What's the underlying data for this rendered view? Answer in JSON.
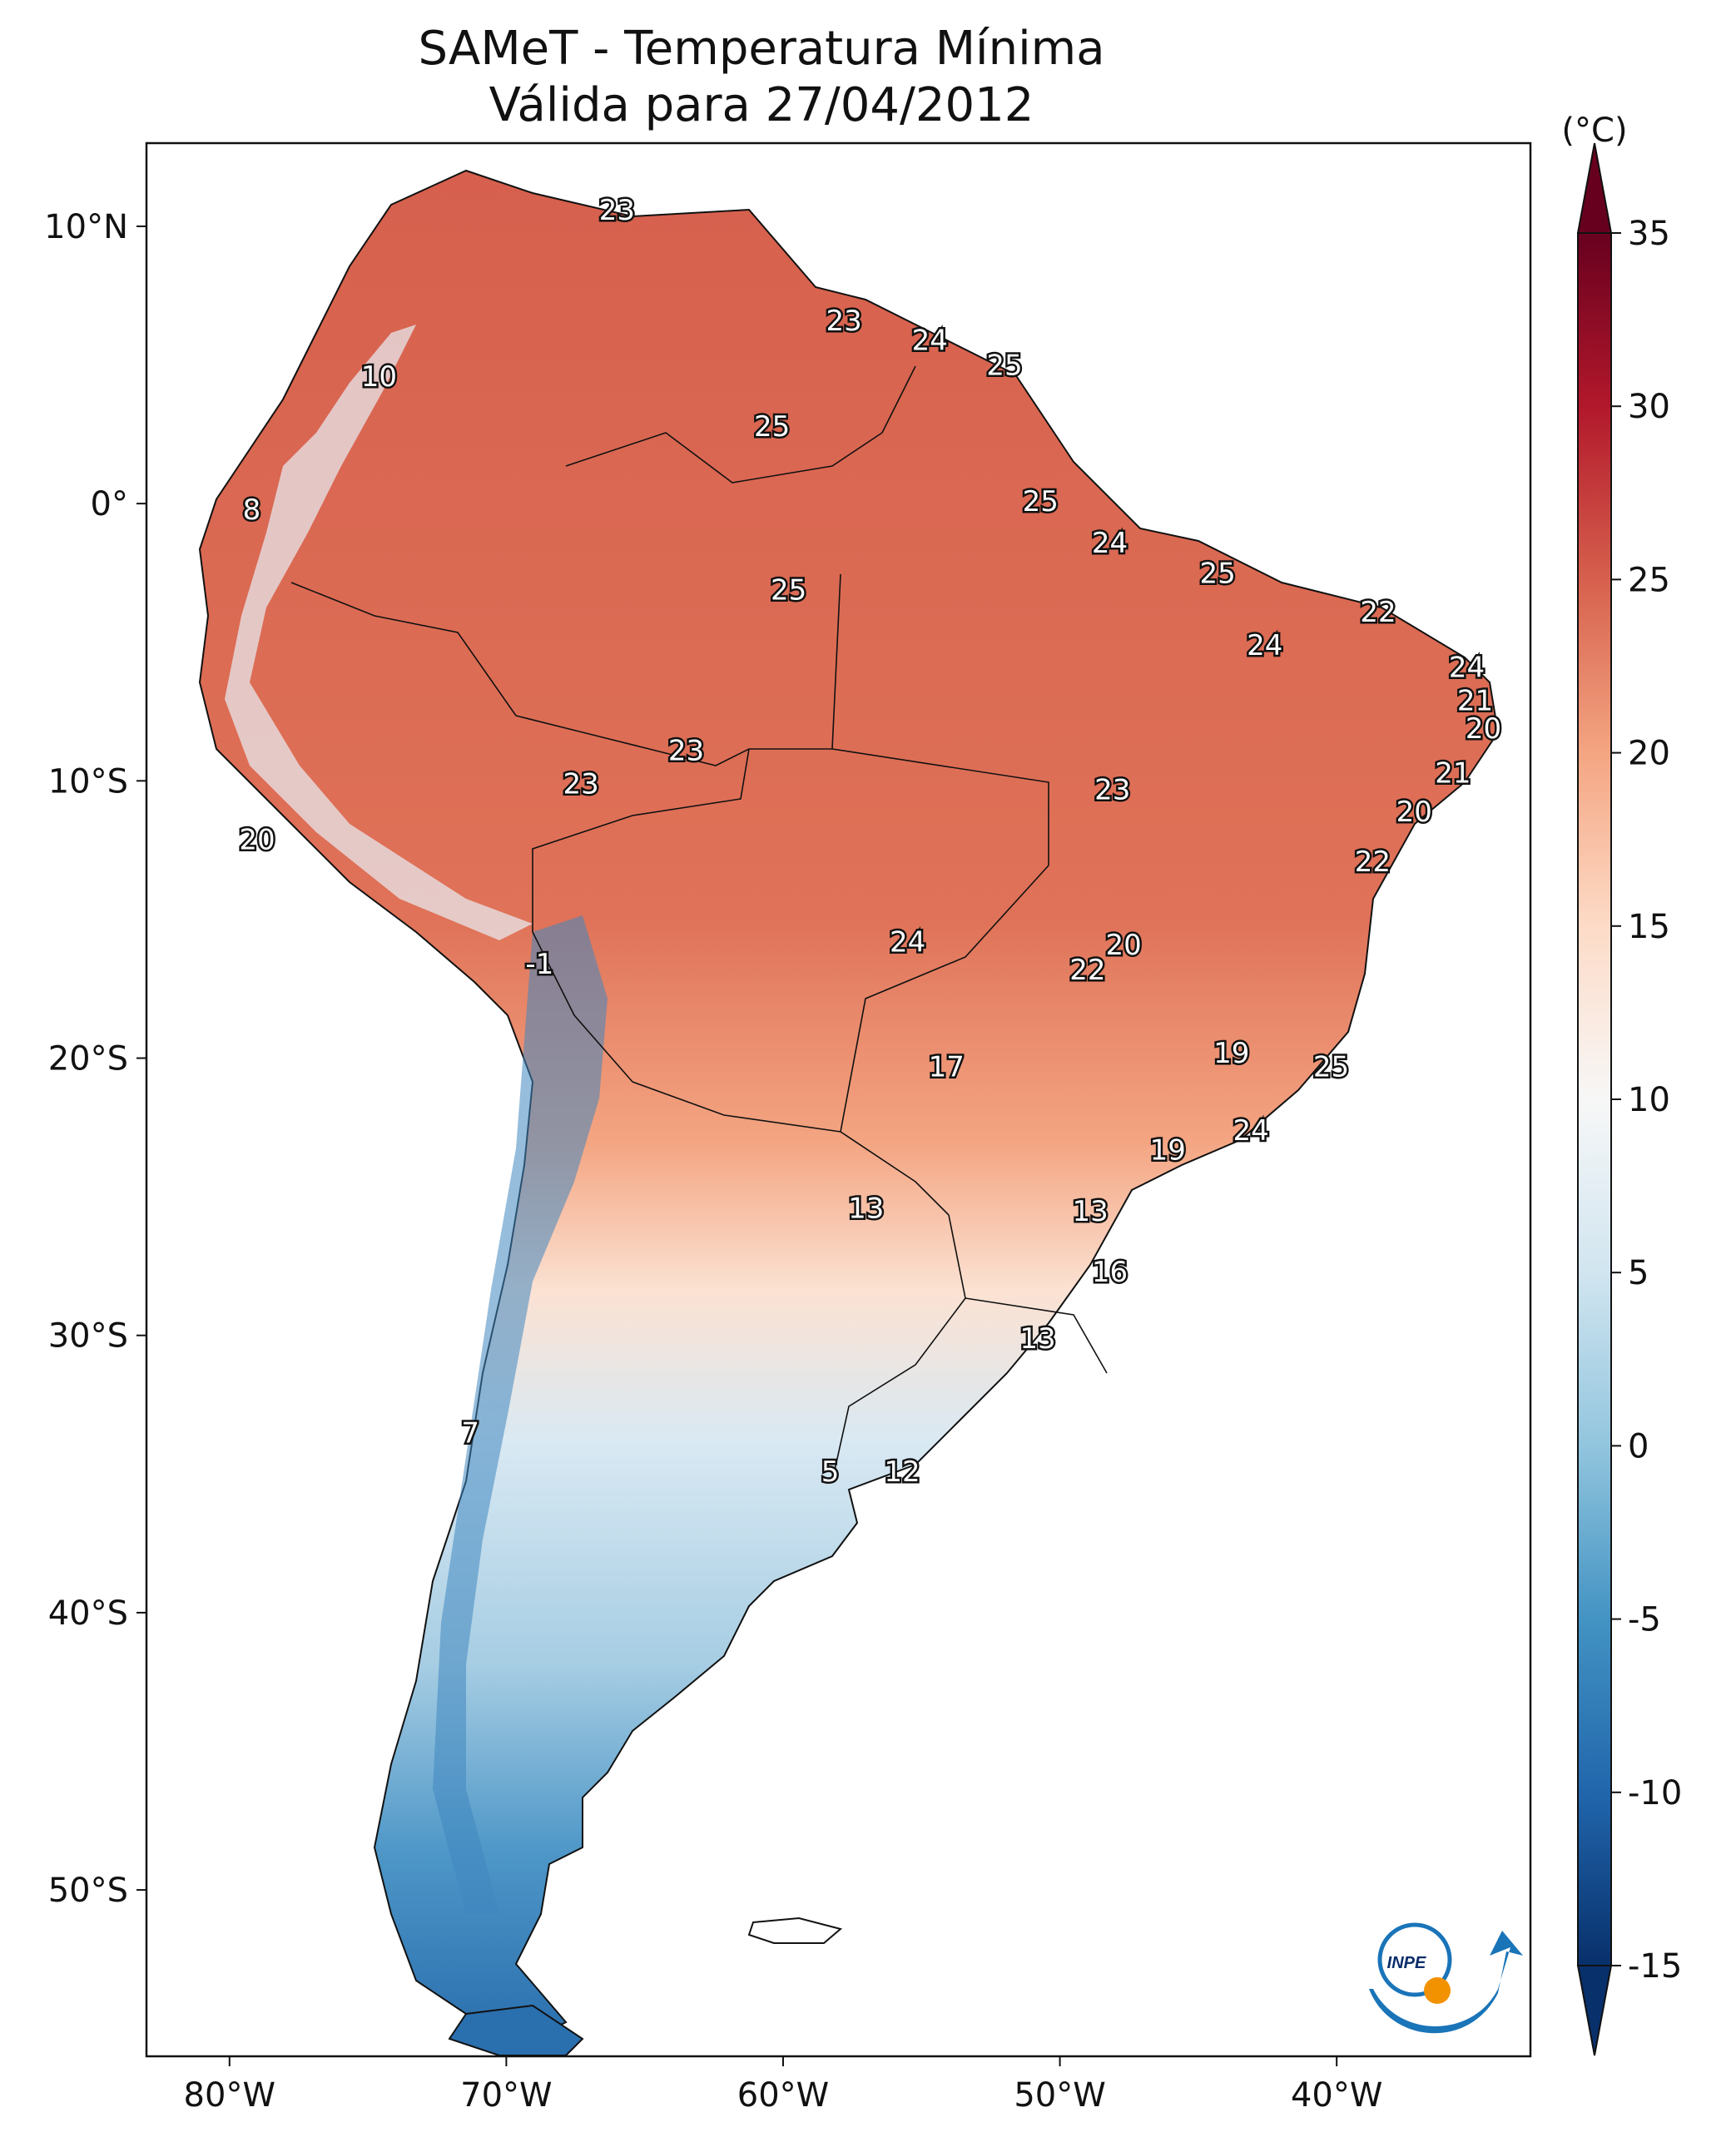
{
  "title": "SAMeT - Temperatura Mínima",
  "subtitle": "Válida para 27/04/2012",
  "lon_ticks": [
    {
      "label": "80°W",
      "lon": -80
    },
    {
      "label": "70°W",
      "lon": -70
    },
    {
      "label": "60°W",
      "lon": -60
    },
    {
      "label": "50°W",
      "lon": -50
    },
    {
      "label": "40°W",
      "lon": -40
    }
  ],
  "lat_ticks": [
    {
      "label": "10°N",
      "lat": 10
    },
    {
      "label": "0°",
      "lat": 0
    },
    {
      "label": "10°S",
      "lat": -10
    },
    {
      "label": "20°S",
      "lat": -20
    },
    {
      "label": "30°S",
      "lat": -30
    },
    {
      "label": "40°S",
      "lat": -40
    },
    {
      "label": "50°S",
      "lat": -50
    }
  ],
  "extent": {
    "lon": [
      -83,
      -33
    ],
    "lat": [
      -56,
      13
    ]
  },
  "colorbar": {
    "unit": "(°C)",
    "ticks": [
      "35",
      "30",
      "25",
      "20",
      "15",
      "10",
      "5",
      "0",
      "-5",
      "-10",
      "-15"
    ],
    "range": [
      -15,
      35
    ],
    "colors": [
      "#08306b",
      "#2166ac",
      "#4393c3",
      "#92c5de",
      "#d1e5f0",
      "#f7f7f7",
      "#fddbc7",
      "#f4a582",
      "#d6604d",
      "#b2182b",
      "#67001f"
    ]
  },
  "map_labels": [
    {
      "text": "23",
      "lon": -66,
      "lat": 10.6
    },
    {
      "text": "23",
      "lon": -57.8,
      "lat": 6.6
    },
    {
      "text": "24",
      "lon": -54.7,
      "lat": 5.9
    },
    {
      "text": "25",
      "lon": -52,
      "lat": 5
    },
    {
      "text": "10",
      "lon": -74.6,
      "lat": 4.6
    },
    {
      "text": "25",
      "lon": -60.4,
      "lat": 2.8
    },
    {
      "text": "25",
      "lon": -50.7,
      "lat": 0.1
    },
    {
      "text": "8",
      "lon": -79.2,
      "lat": -0.2
    },
    {
      "text": "24",
      "lon": -48.2,
      "lat": -1.4
    },
    {
      "text": "25",
      "lon": -44.3,
      "lat": -2.5
    },
    {
      "text": "25",
      "lon": -59.8,
      "lat": -3.1
    },
    {
      "text": "22",
      "lon": -38.5,
      "lat": -3.9
    },
    {
      "text": "24",
      "lon": -42.6,
      "lat": -5.1
    },
    {
      "text": "24",
      "lon": -35.3,
      "lat": -5.9
    },
    {
      "text": "21",
      "lon": -35,
      "lat": -7.1
    },
    {
      "text": "20",
      "lon": -34.7,
      "lat": -8.1
    },
    {
      "text": "23",
      "lon": -63.5,
      "lat": -8.9
    },
    {
      "text": "23",
      "lon": -67.3,
      "lat": -10.1
    },
    {
      "text": "23",
      "lon": -48.1,
      "lat": -10.3
    },
    {
      "text": "21",
      "lon": -35.8,
      "lat": -9.7
    },
    {
      "text": "20",
      "lon": -37.2,
      "lat": -11.1
    },
    {
      "text": "20",
      "lon": -79,
      "lat": -12.1
    },
    {
      "text": "22",
      "lon": -38.7,
      "lat": -12.9
    },
    {
      "text": "24",
      "lon": -55.5,
      "lat": -15.8
    },
    {
      "text": "20",
      "lon": -47.7,
      "lat": -15.9
    },
    {
      "text": "22",
      "lon": -49,
      "lat": -16.8
    },
    {
      "text": "-1",
      "lon": -68.8,
      "lat": -16.6
    },
    {
      "text": "19",
      "lon": -43.8,
      "lat": -19.8
    },
    {
      "text": "25",
      "lon": -40.2,
      "lat": -20.3
    },
    {
      "text": "17",
      "lon": -54.1,
      "lat": -20.3
    },
    {
      "text": "24",
      "lon": -43.1,
      "lat": -22.6
    },
    {
      "text": "19",
      "lon": -46.1,
      "lat": -23.3
    },
    {
      "text": "13",
      "lon": -57,
      "lat": -25.4
    },
    {
      "text": "13",
      "lon": -48.9,
      "lat": -25.5
    },
    {
      "text": "16",
      "lon": -48.2,
      "lat": -27.7
    },
    {
      "text": "13",
      "lon": -50.8,
      "lat": -30.1
    },
    {
      "text": "7",
      "lon": -71.3,
      "lat": -33.5
    },
    {
      "text": "5",
      "lon": -58.3,
      "lat": -34.9
    },
    {
      "text": "12",
      "lon": -55.7,
      "lat": -34.9
    }
  ],
  "logo": {
    "text": "INPE"
  }
}
